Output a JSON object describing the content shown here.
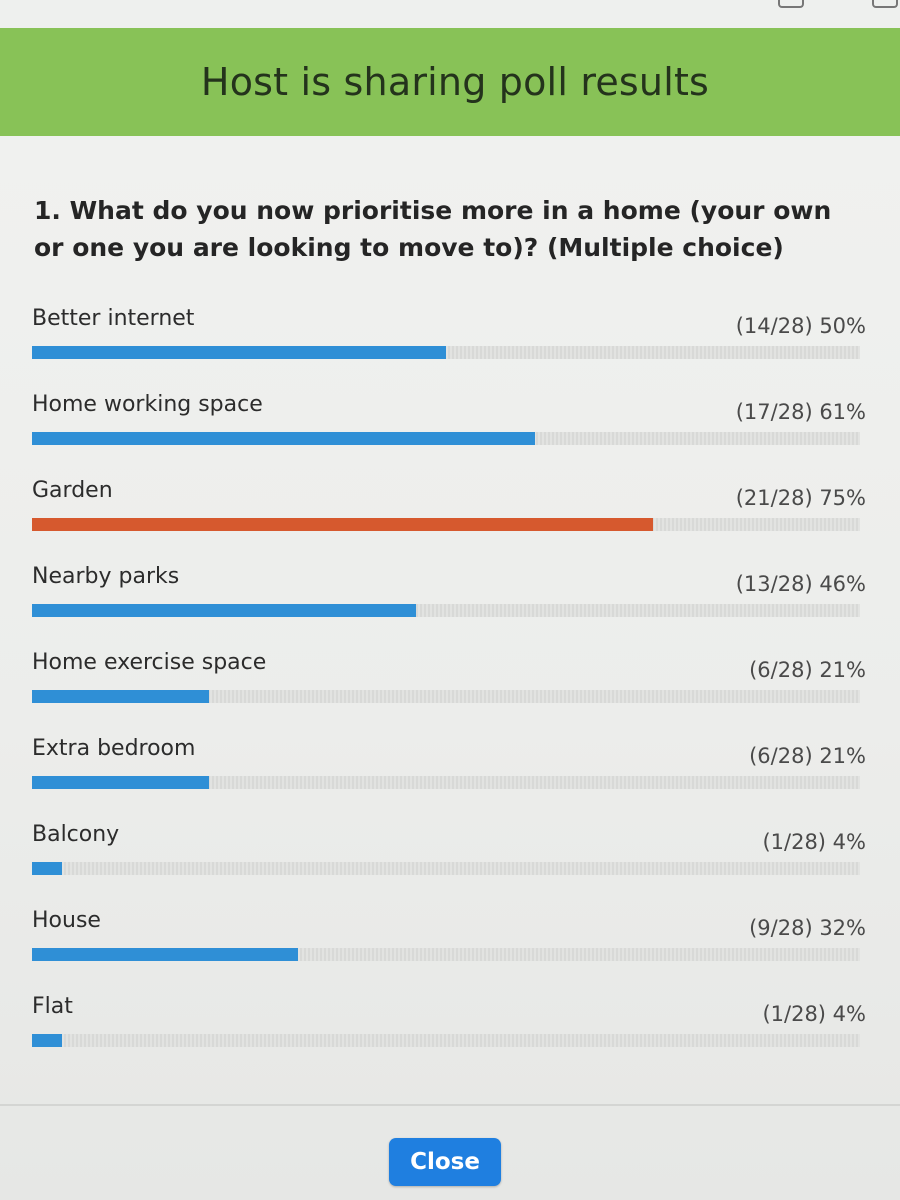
{
  "banner": {
    "title": "Host is sharing poll results",
    "color": "#88c257"
  },
  "question": "1. What do you now prioritise more in a home (your own or one you are looking to move to)? (Multiple choice)",
  "colors": {
    "bar": "#2f8fd6",
    "top_bar": "#d6592e",
    "track": "#dcdddb"
  },
  "options": [
    {
      "label": "Better internet",
      "stats": "(14/28) 50%",
      "votes": 14,
      "total": 28,
      "percent": 50,
      "top": false
    },
    {
      "label": "Home working space",
      "stats": "(17/28) 61%",
      "votes": 17,
      "total": 28,
      "percent": 61,
      "top": false
    },
    {
      "label": "Garden",
      "stats": "(21/28) 75%",
      "votes": 21,
      "total": 28,
      "percent": 75,
      "top": true
    },
    {
      "label": "Nearby parks",
      "stats": "(13/28) 46%",
      "votes": 13,
      "total": 28,
      "percent": 46,
      "top": false
    },
    {
      "label": "Home exercise space",
      "stats": "(6/28) 21%",
      "votes": 6,
      "total": 28,
      "percent": 21,
      "top": false
    },
    {
      "label": "Extra bedroom",
      "stats": "(6/28) 21%",
      "votes": 6,
      "total": 28,
      "percent": 21,
      "top": false
    },
    {
      "label": "Balcony",
      "stats": "(1/28) 4%",
      "votes": 1,
      "total": 28,
      "percent": 4,
      "top": false
    },
    {
      "label": "House",
      "stats": "(9/28) 32%",
      "votes": 9,
      "total": 28,
      "percent": 32,
      "top": false
    },
    {
      "label": "Flat",
      "stats": "(1/28) 4%",
      "votes": 1,
      "total": 28,
      "percent": 4,
      "top": false
    }
  ],
  "footer": {
    "close_label": "Close"
  }
}
